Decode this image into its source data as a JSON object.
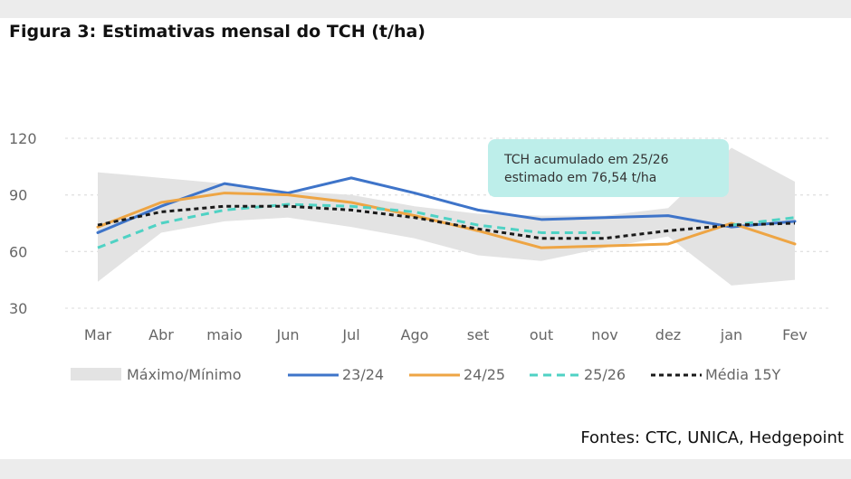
{
  "title": "Figura 3: Estimativas mensal do TCH (t/ha)",
  "source": "Fontes: CTC, UNICA, Hedgepoint",
  "chart_data": {
    "type": "line",
    "categories": [
      "Mar",
      "Abr",
      "maio",
      "Jun",
      "Jul",
      "Ago",
      "set",
      "out",
      "nov",
      "dez",
      "jan",
      "Fev"
    ],
    "ylim": [
      30,
      120
    ],
    "yticks": [
      30,
      60,
      90,
      120
    ],
    "grid": "horizontal-dotted",
    "legend_position": "bottom",
    "band": {
      "name": "Máximo/Mínimo",
      "color": "#e3e3e3",
      "max": [
        102,
        99,
        96,
        92,
        90,
        84,
        80,
        79,
        79,
        83,
        115,
        97
      ],
      "min": [
        44,
        70,
        76,
        78,
        73,
        67,
        58,
        55,
        62,
        68,
        42,
        45
      ]
    },
    "series": [
      {
        "name": "23/24",
        "color": "#3e74c9",
        "style": "solid",
        "values": [
          70,
          84,
          96,
          91,
          99,
          91,
          82,
          77,
          78,
          79,
          73,
          76
        ]
      },
      {
        "name": "24/25",
        "color": "#eea544",
        "style": "solid",
        "values": [
          73,
          86,
          91,
          90,
          86,
          79,
          71,
          62,
          63,
          64,
          75,
          64
        ]
      },
      {
        "name": "25/26",
        "color": "#4fd2c4",
        "style": "dashed",
        "values": [
          62,
          75,
          82,
          85,
          84,
          81,
          74,
          70,
          70,
          null,
          74,
          78
        ]
      },
      {
        "name": "Média 15Y",
        "color": "#1a1a1a",
        "style": "dashed",
        "values": [
          74,
          81,
          84,
          84,
          82,
          78,
          72,
          67,
          67,
          71,
          74,
          75
        ]
      }
    ],
    "annotation": {
      "lines": [
        "TCH acumulado em 25/26",
        "estimado em 76,54 t/ha"
      ],
      "color": "#bdeeea"
    }
  }
}
